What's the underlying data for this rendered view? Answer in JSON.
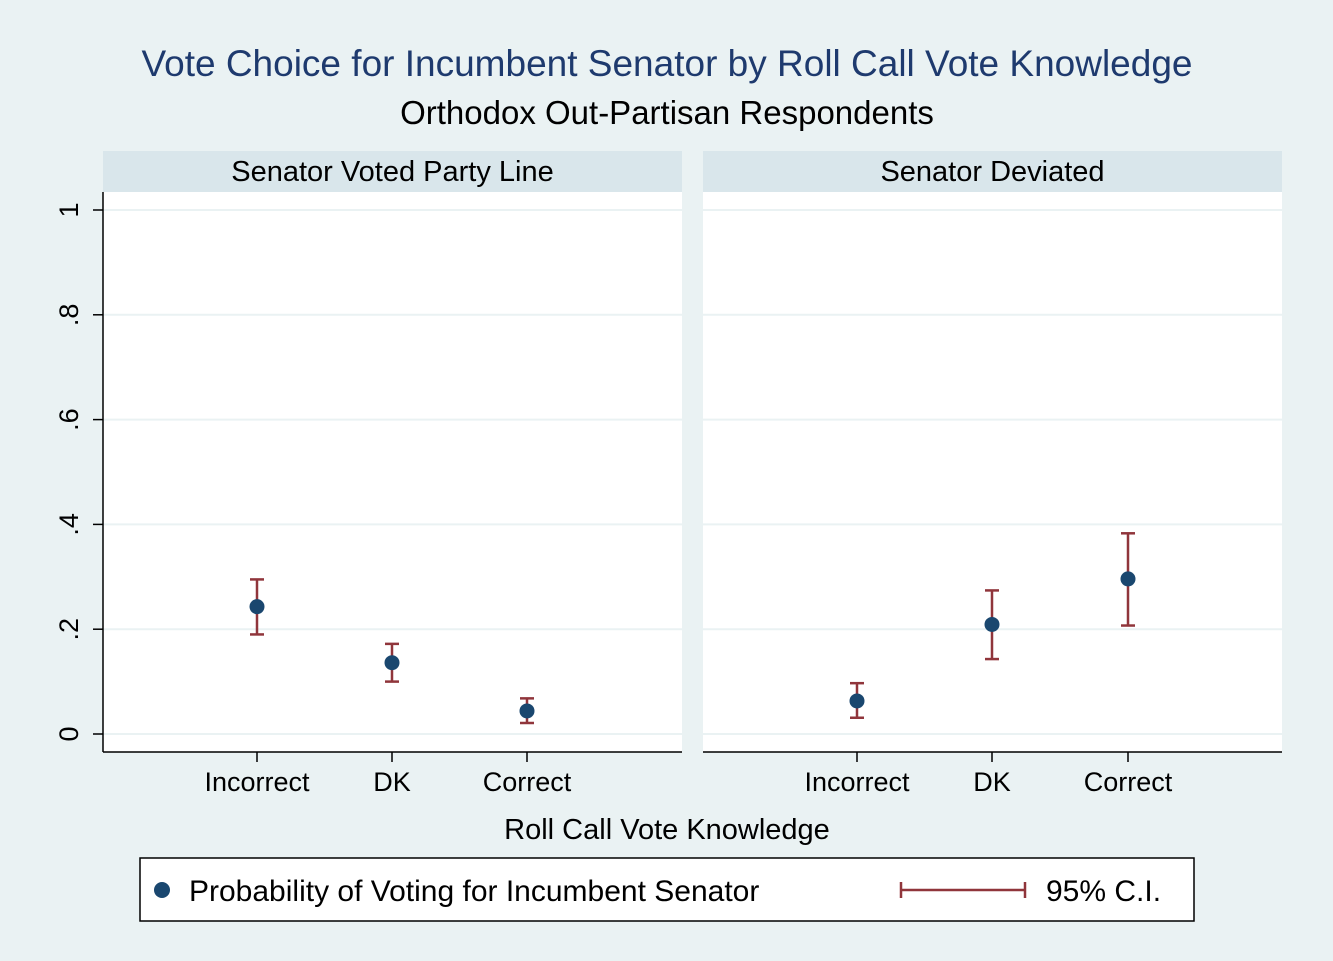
{
  "chart_data": {
    "type": "scatter",
    "title": "Vote Choice for Incumbent Senator by Roll Call Vote Knowledge",
    "subtitle": "Orthodox Out-Partisan Respondents",
    "xlabel": "Roll Call Vote Knowledge",
    "ylabel": "",
    "ylim": [
      0,
      1
    ],
    "yticks": [
      0,
      0.2,
      0.4,
      0.6,
      0.8,
      1
    ],
    "ytick_labels": [
      "0",
      ".2",
      ".4",
      ".6",
      ".8",
      "1"
    ],
    "grid": true,
    "categories": [
      "Incorrect",
      "DK",
      "Correct"
    ],
    "series_names": {
      "point": "Probability of Voting for Incumbent Senator",
      "interval": "95% C.I."
    },
    "legend_placement": "bottom",
    "colors": {
      "point": "#1a476f",
      "interval": "#90353b",
      "panel_header": "#d9e6eb",
      "background": "#eaf2f3"
    },
    "panels": [
      {
        "label": "Senator Voted Party Line",
        "points": [
          {
            "category": "Incorrect",
            "value": 0.243,
            "ci_low": 0.19,
            "ci_high": 0.295
          },
          {
            "category": "DK",
            "value": 0.136,
            "ci_low": 0.1,
            "ci_high": 0.172
          },
          {
            "category": "Correct",
            "value": 0.044,
            "ci_low": 0.021,
            "ci_high": 0.068
          }
        ]
      },
      {
        "label": "Senator Deviated",
        "points": [
          {
            "category": "Incorrect",
            "value": 0.063,
            "ci_low": 0.031,
            "ci_high": 0.097
          },
          {
            "category": "DK",
            "value": 0.209,
            "ci_low": 0.143,
            "ci_high": 0.274
          },
          {
            "category": "Correct",
            "value": 0.296,
            "ci_low": 0.207,
            "ci_high": 0.383
          }
        ]
      }
    ]
  }
}
